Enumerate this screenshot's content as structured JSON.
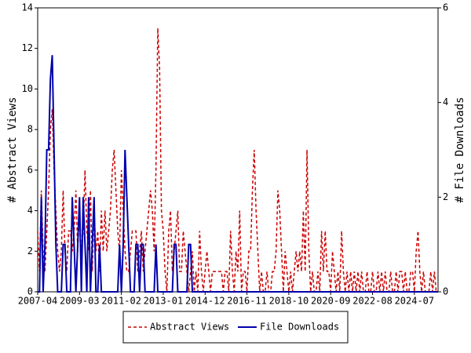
{
  "chart_data": {
    "type": "line",
    "ylabel": "# Abstract Views",
    "y2label": "# File Downloads",
    "categories": [
      "2007-04",
      null,
      null,
      null,
      null,
      null,
      null,
      null,
      null,
      null,
      null,
      null,
      null,
      null,
      null,
      null,
      null,
      null,
      null,
      null,
      null,
      null,
      null,
      "2009-03",
      null,
      null,
      null,
      null,
      null,
      null,
      null,
      null,
      null,
      null,
      null,
      null,
      null,
      null,
      null,
      null,
      null,
      null,
      null,
      null,
      null,
      null,
      "2011-02",
      null,
      null,
      null,
      null,
      null,
      null,
      null,
      null,
      null,
      null,
      null,
      null,
      null,
      null,
      null,
      null,
      null,
      null,
      null,
      null,
      null,
      null,
      "2013-01",
      null,
      null,
      null,
      null,
      null,
      null,
      null,
      null,
      null,
      null,
      null,
      null,
      null,
      null,
      null,
      null,
      null,
      null,
      null,
      null,
      null,
      null,
      "2014-12",
      null,
      null,
      null,
      null,
      null,
      null,
      null,
      null,
      null,
      null,
      null,
      null,
      null,
      null,
      null,
      null,
      null,
      null,
      null,
      null,
      null,
      null,
      "2016-11",
      null,
      null,
      null,
      null,
      null,
      null,
      null,
      null,
      null,
      null,
      null,
      null,
      null,
      null,
      null,
      null,
      null,
      null,
      null,
      null,
      null,
      null,
      "2018-10",
      null,
      null,
      null,
      null,
      null,
      null,
      null,
      null,
      null,
      null,
      null,
      null,
      null,
      null,
      null,
      null,
      null,
      null,
      null,
      null,
      null,
      null,
      "2020-09",
      null,
      null,
      null,
      null,
      null,
      null,
      null,
      null,
      null,
      null,
      null,
      null,
      null,
      null,
      null,
      null,
      null,
      null,
      null,
      null,
      null,
      null,
      "2022-08",
      null,
      null,
      null,
      null,
      null,
      null,
      null,
      null,
      null,
      null,
      null,
      null,
      null,
      null,
      null,
      null,
      null,
      null,
      null,
      null,
      null,
      null,
      "2024-07",
      null,
      null,
      null,
      null,
      null,
      null,
      null,
      null,
      null,
      null,
      null,
      null,
      null
    ],
    "ylim": [
      0,
      14
    ],
    "yticks": [
      0,
      2,
      4,
      6,
      8,
      10,
      12,
      14
    ],
    "y2lim": [
      0,
      6
    ],
    "y2ticks": [
      0,
      2,
      4,
      6
    ],
    "legend": "bottom",
    "series": [
      {
        "name": "Abstract Views",
        "color": "#cc0000",
        "dashed": true,
        "values": [
          3,
          1,
          5,
          2,
          1,
          3,
          5,
          8,
          9,
          6,
          4,
          2,
          1,
          2,
          5,
          2,
          1,
          3,
          3,
          2,
          3,
          5,
          2,
          4,
          2,
          3,
          6,
          3,
          2,
          5,
          1,
          4,
          2,
          3,
          1,
          4,
          2,
          4,
          2,
          3,
          4,
          6,
          7,
          5,
          3,
          2,
          6,
          4,
          2,
          1,
          1,
          2,
          3,
          3,
          3,
          1,
          2,
          3,
          1,
          2,
          3,
          4,
          5,
          4,
          2,
          6,
          13,
          11,
          4,
          3,
          1,
          0,
          3,
          4,
          1,
          2,
          3,
          4,
          1,
          1,
          3,
          2,
          1,
          0,
          1,
          2,
          0,
          1,
          0,
          3,
          1,
          0,
          1,
          2,
          1,
          0,
          1,
          1,
          1,
          1,
          1,
          1,
          0,
          1,
          1,
          0,
          3,
          1,
          0,
          2,
          1,
          4,
          0,
          1,
          1,
          0,
          2,
          2,
          5,
          7,
          4,
          2,
          0,
          1,
          0,
          0,
          1,
          0,
          0,
          1,
          1,
          2,
          5,
          4,
          2,
          0,
          2,
          1,
          0,
          1,
          0,
          1,
          2,
          1,
          2,
          1,
          4,
          1,
          7,
          2,
          0,
          1,
          0,
          0,
          1,
          0,
          3,
          1,
          3,
          1,
          1,
          0,
          2,
          1,
          0,
          1,
          0,
          3,
          1,
          0,
          1,
          0,
          1,
          0,
          1,
          0,
          1,
          0,
          1,
          0,
          0,
          1,
          0,
          0,
          1,
          0,
          0,
          1,
          0,
          1,
          0,
          1,
          0,
          0,
          1,
          0,
          0,
          1,
          0,
          1,
          1,
          0,
          1,
          0,
          0,
          1,
          1,
          0,
          2,
          3,
          1,
          0,
          1,
          0,
          0,
          0,
          1,
          0,
          1,
          0,
          0
        ]
      },
      {
        "name": "File Downloads",
        "color": "#0000aa",
        "dashed": false,
        "axis": "y2",
        "values": [
          0,
          0,
          2,
          0,
          1,
          3,
          3,
          4.5,
          5,
          3,
          1,
          0,
          0,
          0,
          1,
          1,
          0,
          0,
          0,
          2,
          1,
          0,
          1,
          2,
          0,
          2,
          1,
          0,
          2,
          0,
          1,
          2,
          0,
          0,
          1,
          0,
          0,
          0,
          0,
          0,
          0,
          0,
          0,
          0,
          0,
          1,
          0,
          1,
          3,
          2,
          1,
          0,
          0,
          0,
          1,
          1,
          0,
          1,
          1,
          0,
          0,
          0,
          0,
          0,
          0,
          1,
          0,
          0,
          0,
          0,
          0,
          0,
          0,
          0,
          0,
          1,
          1,
          0,
          0,
          0,
          0,
          0,
          0,
          1,
          1,
          0,
          0,
          0,
          0,
          0,
          0,
          0,
          0,
          0,
          0,
          0,
          0,
          0,
          0,
          0,
          0,
          0,
          0,
          0,
          0,
          0,
          0,
          0,
          0,
          0,
          0,
          0,
          0,
          0,
          0,
          0,
          0,
          0,
          0,
          0,
          0,
          0,
          0,
          0,
          0,
          0,
          0,
          0,
          0,
          0,
          0,
          0,
          0,
          0,
          0,
          0,
          0,
          0,
          0,
          0,
          0,
          0,
          0,
          0,
          0,
          0,
          0,
          0,
          0,
          0,
          0,
          0,
          0,
          0,
          0,
          0,
          0,
          0,
          0,
          0,
          0,
          0,
          0,
          0,
          0,
          0,
          0,
          0,
          0,
          0,
          0,
          0,
          0,
          0,
          0,
          0,
          0,
          0,
          0,
          0,
          0,
          0,
          0,
          0,
          0,
          0,
          0,
          0,
          0,
          0,
          0,
          0,
          0,
          0,
          0,
          0,
          0,
          0,
          0,
          0,
          0,
          0,
          0,
          0,
          0,
          0,
          0,
          0,
          0,
          0,
          0,
          0,
          0,
          0,
          0,
          0,
          0,
          0,
          0,
          0,
          0
        ]
      }
    ]
  }
}
